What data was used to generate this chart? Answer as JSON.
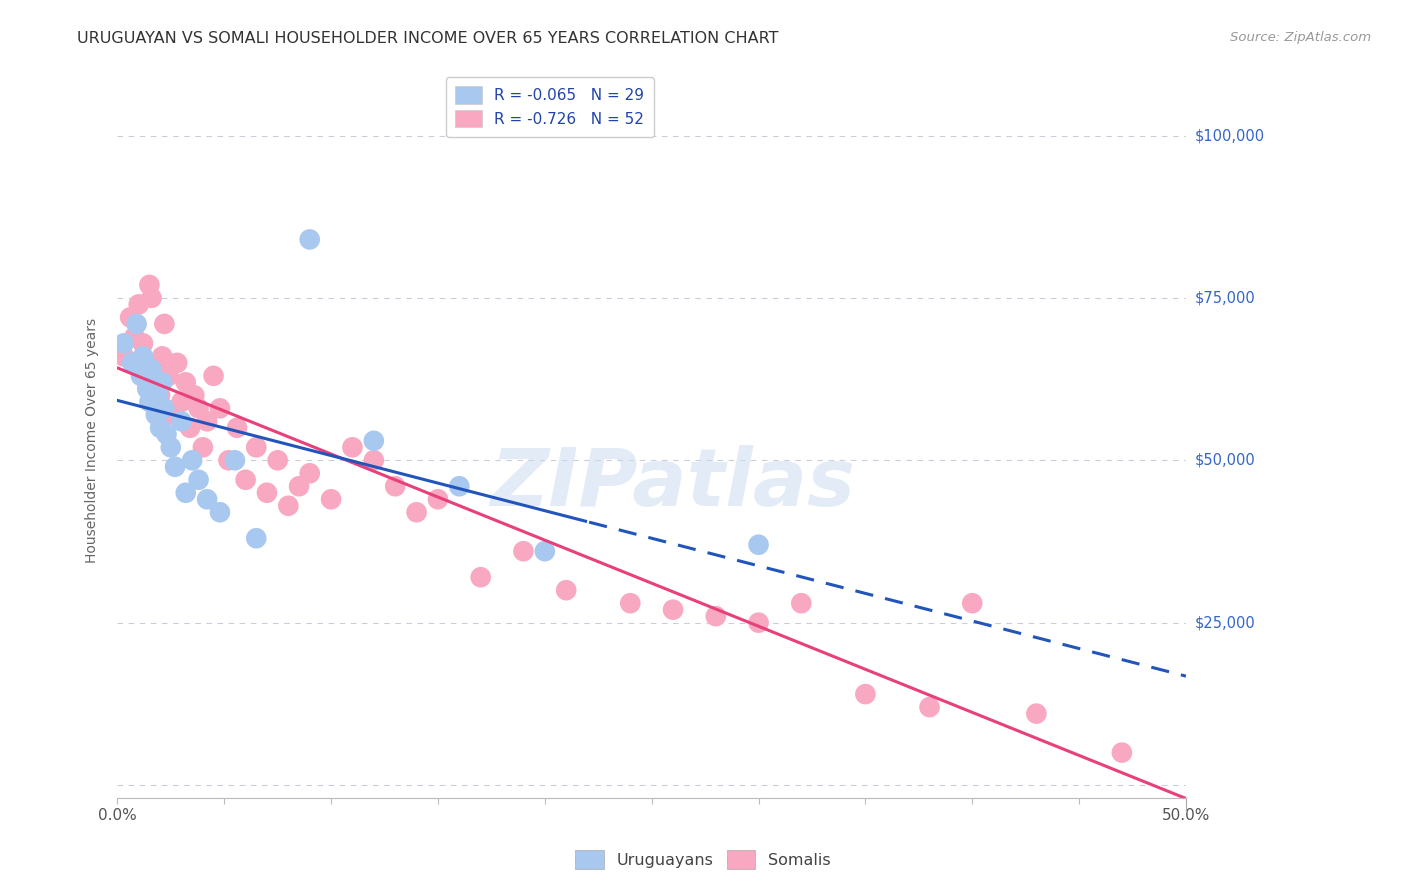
{
  "title": "URUGUAYAN VS SOMALI HOUSEHOLDER INCOME OVER 65 YEARS CORRELATION CHART",
  "source": "Source: ZipAtlas.com",
  "ylabel": "Householder Income Over 65 years",
  "watermark": "ZIPatlas",
  "xlim": [
    0.0,
    0.5
  ],
  "ylim": [
    -2000,
    108000
  ],
  "yticks": [
    0,
    25000,
    50000,
    75000,
    100000
  ],
  "xtick_positions": [
    0.0,
    0.05,
    0.1,
    0.15,
    0.2,
    0.25,
    0.3,
    0.35,
    0.4,
    0.45,
    0.5
  ],
  "uruguayan_R": -0.065,
  "uruguayan_N": 29,
  "somali_R": -0.726,
  "somali_N": 52,
  "uruguayan_color": "#a8c8f0",
  "somali_color": "#f8a8c0",
  "uruguayan_line_color": "#2255bb",
  "somali_line_color": "#e8407a",
  "uruguayan_x": [
    0.003,
    0.007,
    0.009,
    0.011,
    0.012,
    0.014,
    0.015,
    0.016,
    0.018,
    0.019,
    0.02,
    0.021,
    0.022,
    0.023,
    0.025,
    0.027,
    0.03,
    0.032,
    0.035,
    0.038,
    0.042,
    0.048,
    0.055,
    0.065,
    0.09,
    0.12,
    0.16,
    0.2,
    0.3
  ],
  "uruguayan_y": [
    68000,
    65000,
    71000,
    63000,
    66000,
    61000,
    59000,
    64000,
    57000,
    60000,
    55000,
    62000,
    58000,
    54000,
    52000,
    49000,
    56000,
    45000,
    50000,
    47000,
    44000,
    42000,
    50000,
    38000,
    84000,
    53000,
    46000,
    36000,
    37000
  ],
  "somali_x": [
    0.003,
    0.006,
    0.008,
    0.01,
    0.012,
    0.014,
    0.015,
    0.016,
    0.018,
    0.02,
    0.021,
    0.022,
    0.024,
    0.026,
    0.028,
    0.03,
    0.032,
    0.034,
    0.036,
    0.038,
    0.04,
    0.042,
    0.045,
    0.048,
    0.052,
    0.056,
    0.06,
    0.065,
    0.07,
    0.075,
    0.08,
    0.085,
    0.09,
    0.1,
    0.11,
    0.12,
    0.13,
    0.14,
    0.15,
    0.17,
    0.19,
    0.21,
    0.24,
    0.26,
    0.28,
    0.3,
    0.32,
    0.35,
    0.38,
    0.4,
    0.43,
    0.47
  ],
  "somali_y": [
    66000,
    72000,
    69000,
    74000,
    68000,
    62000,
    77000,
    75000,
    64000,
    60000,
    66000,
    71000,
    63000,
    57000,
    65000,
    59000,
    62000,
    55000,
    60000,
    58000,
    52000,
    56000,
    63000,
    58000,
    50000,
    55000,
    47000,
    52000,
    45000,
    50000,
    43000,
    46000,
    48000,
    44000,
    52000,
    50000,
    46000,
    42000,
    44000,
    32000,
    36000,
    30000,
    28000,
    27000,
    26000,
    25000,
    28000,
    14000,
    12000,
    28000,
    11000,
    5000
  ],
  "background_color": "#ffffff",
  "grid_color": "#ccccdd",
  "right_tick_color": "#3366cc",
  "title_fontsize": 11.5,
  "source_fontsize": 9.5
}
